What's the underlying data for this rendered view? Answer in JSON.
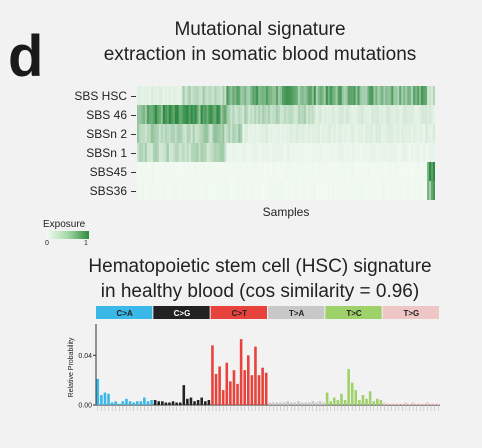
{
  "panel_letter": "d",
  "heatmap": {
    "title_line1": "Mutational signature",
    "title_line2": "extraction in somatic blood mutations",
    "rows": [
      "SBS HSC",
      "SBS 46",
      "SBSn 2",
      "SBSn 1",
      "SBS45",
      "SBS36"
    ],
    "xlabel": "Samples",
    "legend_title": "Exposure",
    "legend_min": "0",
    "legend_max": "1",
    "colors": {
      "low": "#f4fbf4",
      "high": "#2f8a42"
    }
  },
  "signature": {
    "title_line1": "Hematopoietic stem cell (HSC) signature",
    "title_line2": "in healthy blood (cos similarity = 0.96)",
    "ylabel": "Relative Probability",
    "yticks": [
      "0.00",
      "0.04"
    ]
  },
  "chart_data": [
    {
      "type": "heatmap",
      "title": "Mutational signature extraction in somatic blood mutations",
      "xlabel": "Samples",
      "ylabel": "",
      "rows": [
        "SBS HSC",
        "SBS 46",
        "SBSn 2",
        "SBSn 1",
        "SBS45",
        "SBS36"
      ],
      "n_samples": 150,
      "value_range": [
        0,
        1
      ],
      "row_profiles": [
        {
          "row": "SBS HSC",
          "segments": [
            {
              "from": 0.0,
              "to": 0.15,
              "level": 0.1
            },
            {
              "from": 0.15,
              "to": 0.3,
              "level": 0.3
            },
            {
              "from": 0.3,
              "to": 0.97,
              "level": 0.65
            },
            {
              "from": 0.97,
              "to": 1.0,
              "level": 0.25
            }
          ]
        },
        {
          "row": "SBS 46",
          "segments": [
            {
              "from": 0.0,
              "to": 0.3,
              "level": 0.75
            },
            {
              "from": 0.3,
              "to": 0.6,
              "level": 0.3
            },
            {
              "from": 0.6,
              "to": 1.0,
              "level": 0.12
            }
          ]
        },
        {
          "row": "SBSn 2",
          "segments": [
            {
              "from": 0.0,
              "to": 0.35,
              "level": 0.35
            },
            {
              "from": 0.35,
              "to": 1.0,
              "level": 0.1
            }
          ]
        },
        {
          "row": "SBSn 1",
          "segments": [
            {
              "from": 0.0,
              "to": 0.3,
              "level": 0.3
            },
            {
              "from": 0.3,
              "to": 1.0,
              "level": 0.05
            }
          ]
        },
        {
          "row": "SBS45",
          "segments": [
            {
              "from": 0.0,
              "to": 0.97,
              "level": 0.02
            },
            {
              "from": 0.97,
              "to": 1.0,
              "level": 0.8
            }
          ]
        },
        {
          "row": "SBS36",
          "segments": [
            {
              "from": 0.0,
              "to": 0.97,
              "level": 0.02
            },
            {
              "from": 0.97,
              "to": 1.0,
              "level": 0.7
            }
          ]
        }
      ]
    },
    {
      "type": "bar",
      "title": "Hematopoietic stem cell (HSC) signature in healthy blood (cos similarity = 0.96)",
      "xlabel": "",
      "ylabel": "Relative Probability",
      "ylim": [
        0,
        0.07
      ],
      "yticks": [
        0.0,
        0.04
      ],
      "grid": false,
      "categories_groups": [
        {
          "name": "C>A",
          "color": "#3ab8e8"
        },
        {
          "name": "C>G",
          "color": "#222222"
        },
        {
          "name": "C>T",
          "color": "#e8423c"
        },
        {
          "name": "T>A",
          "color": "#c8c8c8"
        },
        {
          "name": "T>C",
          "color": "#9fd16b"
        },
        {
          "name": "T>G",
          "color": "#efc6c6"
        }
      ],
      "values": [
        0.021,
        0.008,
        0.01,
        0.009,
        0.002,
        0.003,
        0.001,
        0.003,
        0.005,
        0.003,
        0.002,
        0.003,
        0.003,
        0.006,
        0.003,
        0.004,
        0.004,
        0.003,
        0.003,
        0.002,
        0.002,
        0.003,
        0.002,
        0.002,
        0.016,
        0.005,
        0.006,
        0.003,
        0.004,
        0.006,
        0.003,
        0.004,
        0.048,
        0.025,
        0.031,
        0.012,
        0.034,
        0.019,
        0.028,
        0.017,
        0.053,
        0.028,
        0.04,
        0.024,
        0.047,
        0.024,
        0.03,
        0.026,
        0.002,
        0.002,
        0.002,
        0.002,
        0.002,
        0.003,
        0.002,
        0.002,
        0.003,
        0.002,
        0.002,
        0.002,
        0.003,
        0.002,
        0.003,
        0.002,
        0.01,
        0.003,
        0.006,
        0.004,
        0.009,
        0.004,
        0.029,
        0.018,
        0.012,
        0.004,
        0.008,
        0.005,
        0.011,
        0.003,
        0.005,
        0.004,
        0.002,
        0.001,
        0.001,
        0.001,
        0.001,
        0.001,
        0.002,
        0.001,
        0.002,
        0.001,
        0.001,
        0.001,
        0.002,
        0.001,
        0.001,
        0.001
      ]
    }
  ]
}
